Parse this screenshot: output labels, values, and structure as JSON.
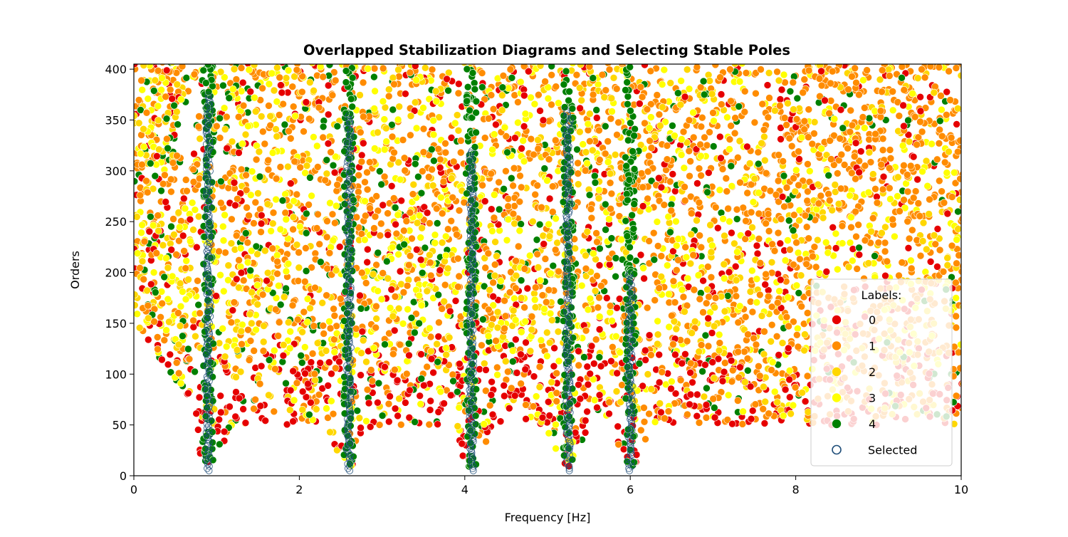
{
  "chart_data": {
    "type": "scatter",
    "title": "Overlapped Stabilization Diagrams and Selecting Stable Poles",
    "xlabel": "Frequency [Hz]",
    "ylabel": "Orders",
    "xlim": [
      0,
      10
    ],
    "ylim": [
      0,
      405
    ],
    "x_ticks": [
      0,
      2,
      4,
      6,
      8,
      10
    ],
    "y_ticks": [
      0,
      50,
      100,
      150,
      200,
      250,
      300,
      350,
      400
    ],
    "grid": false,
    "legend": {
      "title": "Labels:",
      "placement": "lower-right",
      "entries": [
        {
          "label": "0",
          "color": "#e60000",
          "marker": "filled-circle"
        },
        {
          "label": "1",
          "color": "#ff8c00",
          "marker": "filled-circle"
        },
        {
          "label": "2",
          "color": "#ffd700",
          "marker": "filled-circle"
        },
        {
          "label": "3",
          "color": "#ffff00",
          "marker": "filled-circle"
        },
        {
          "label": "4",
          "color": "#008000",
          "marker": "filled-circle"
        },
        {
          "label": "Selected",
          "color": "#1f4e79",
          "marker": "open-circle"
        }
      ]
    },
    "stable_modes_hz": [
      0.9,
      2.6,
      4.08,
      5.25,
      6.0
    ],
    "selected_order_range": [
      5,
      380
    ],
    "series": [
      {
        "label": "0",
        "region": "dense scatter mostly at lower orders and low frequency edges"
      },
      {
        "label": "1",
        "region": "dense scatter mostly at high orders and high frequencies"
      },
      {
        "label": "2",
        "region": "dense scatter spread across all frequencies"
      },
      {
        "label": "3",
        "region": "dense scatter spread across all frequencies"
      },
      {
        "label": "4",
        "region": "concentrated along stable mode columns"
      }
    ]
  }
}
